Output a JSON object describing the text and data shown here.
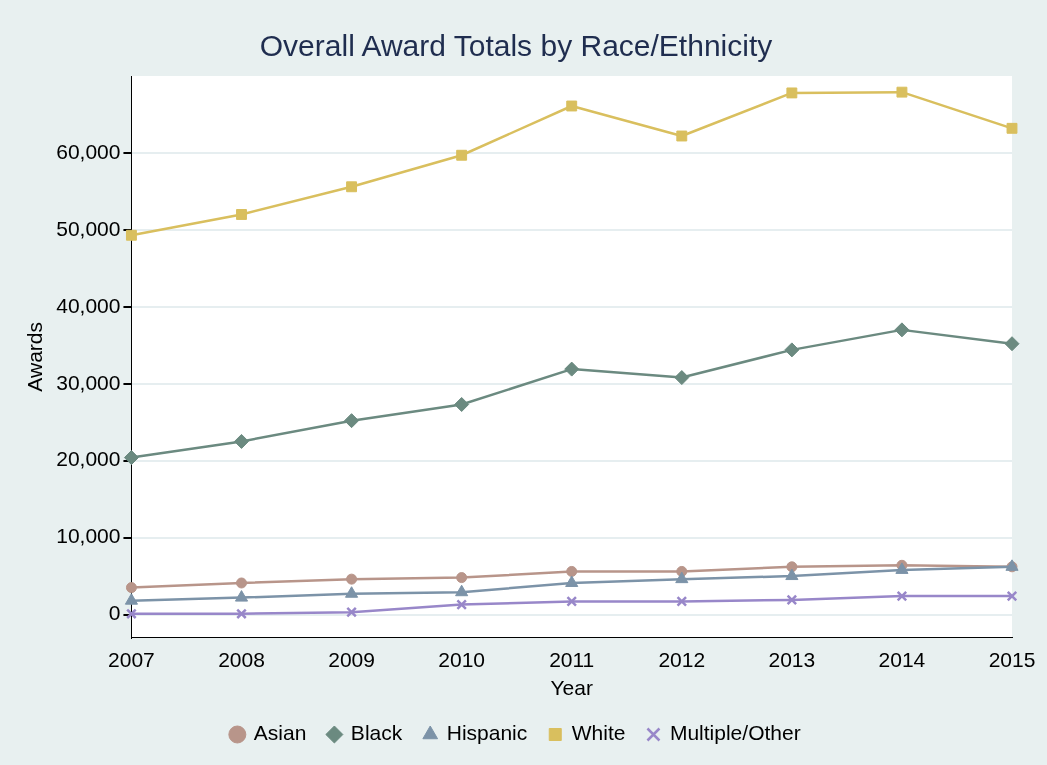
{
  "chart_data": {
    "type": "line",
    "title": "Overall Award Totals by Race/Ethnicity",
    "xlabel": "Year",
    "ylabel": "Awards",
    "categories": [
      "2007",
      "2008",
      "2009",
      "2010",
      "2011",
      "2012",
      "2013",
      "2014",
      "2015"
    ],
    "series": [
      {
        "name": "Asian",
        "color": "#b8958a",
        "marker": "circle",
        "values": [
          3500,
          4100,
          4600,
          4800,
          5600,
          5600,
          6200,
          6400,
          6200
        ]
      },
      {
        "name": "Black",
        "color": "#6b8a80",
        "marker": "diamond",
        "values": [
          20400,
          22500,
          25200,
          27300,
          31900,
          30800,
          34400,
          37000,
          35200
        ]
      },
      {
        "name": "Hispanic",
        "color": "#7c93a8",
        "marker": "triangle",
        "values": [
          1800,
          2200,
          2700,
          2900,
          4100,
          4600,
          5000,
          5800,
          6200
        ]
      },
      {
        "name": "White",
        "color": "#d9bf5e",
        "marker": "square",
        "values": [
          49300,
          52000,
          55600,
          59700,
          66100,
          62200,
          67800,
          67900,
          63200
        ]
      },
      {
        "name": "Multiple/Other",
        "color": "#9887c9",
        "marker": "cross",
        "values": [
          100,
          100,
          300,
          1300,
          1700,
          1700,
          1900,
          2400,
          2400
        ]
      }
    ],
    "ylim": [
      -3000,
      70000
    ],
    "yticks": [
      0,
      {
        "value": 10000,
        "label": "10,000"
      },
      {
        "value": 20000,
        "label": "20,000"
      },
      {
        "value": 30000,
        "label": "30,000"
      },
      {
        "value": 40000,
        "label": "40,000"
      },
      {
        "value": 50000,
        "label": "50,000"
      },
      {
        "value": 60000,
        "label": "60,000"
      }
    ],
    "grid": "y",
    "legend": "bottom",
    "line_style": "solid"
  }
}
